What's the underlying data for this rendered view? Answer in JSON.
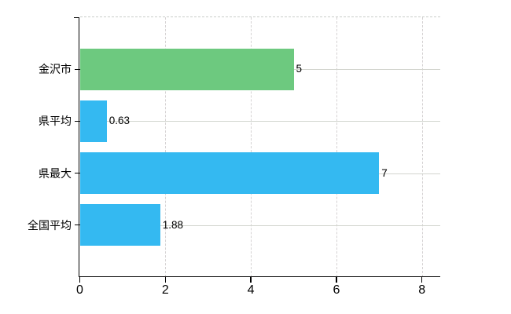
{
  "chart_data": {
    "type": "bar",
    "orientation": "horizontal",
    "title": "",
    "xlabel": "",
    "ylabel": "",
    "categories": [
      "金沢市",
      "県平均",
      "県最大",
      "全国平均"
    ],
    "values": [
      5,
      0.63,
      7,
      1.88
    ],
    "value_labels": [
      "5",
      "0.63",
      "7",
      "1.88"
    ],
    "bar_colors": [
      "#6dc97f",
      "#34b9f1",
      "#34b9f1",
      "#34b9f1"
    ],
    "x_ticks": [
      0,
      2,
      4,
      6,
      8
    ],
    "x_tick_labels": [
      "0",
      "2",
      "4",
      "6",
      "8"
    ],
    "xlim": [
      0,
      8
    ],
    "grid": true,
    "legend": false,
    "colors": {
      "accent_green": "#6dc97f",
      "accent_blue": "#34b9f1",
      "axis": "#000000",
      "grid_horizontal": "#d2d5ce",
      "grid_vertical": "#d5d2d3",
      "plot_top_border": "#c9cdc9",
      "background": "#ffffff",
      "text": "#000000"
    }
  }
}
